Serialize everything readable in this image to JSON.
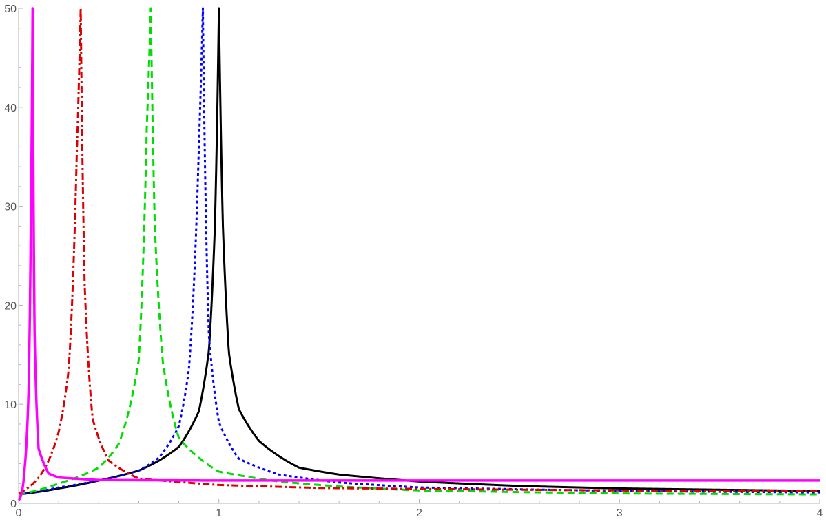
{
  "chart_data": {
    "type": "line",
    "title": "",
    "xlabel": "",
    "ylabel": "",
    "xlim": [
      0,
      4
    ],
    "ylim": [
      0,
      50
    ],
    "x_ticks": [
      0,
      1,
      2,
      3,
      4
    ],
    "y_ticks": [
      0,
      10,
      20,
      30,
      40,
      50
    ],
    "x_tick_labels": [
      "0",
      "1",
      "2",
      "3",
      "4"
    ],
    "y_tick_labels": [
      "0",
      "10",
      "20",
      "30",
      "40",
      "50"
    ],
    "grid": false,
    "legend": "none",
    "series": [
      {
        "color": "#000000",
        "dash": "solid",
        "asymptote_x": 1.0,
        "asymptote_value": 1.2,
        "x": [
          0,
          0.2,
          0.4,
          0.6,
          0.7,
          0.8,
          0.9,
          0.95,
          0.98,
          1.0,
          1.02,
          1.05,
          1.1,
          1.2,
          1.4,
          1.6,
          2.0,
          2.5,
          3.0,
          4.0
        ],
        "y": [
          0.9,
          1.5,
          2.3,
          3.3,
          4.3,
          5.7,
          9.3,
          15.4,
          28,
          50,
          28,
          15.2,
          9.5,
          6.3,
          3.6,
          2.9,
          2.2,
          1.75,
          1.5,
          1.25
        ]
      },
      {
        "color": "#0000ff",
        "dash": "dotted",
        "asymptote_x": 0.92,
        "asymptote_value": 1.1,
        "x": [
          0,
          0.2,
          0.4,
          0.6,
          0.7,
          0.8,
          0.85,
          0.9,
          0.92,
          0.95,
          1.0,
          1.1,
          1.3,
          1.6,
          2.0,
          3.0,
          4.0
        ],
        "y": [
          0.9,
          1.6,
          2.3,
          3.3,
          4.6,
          7.8,
          13.5,
          36,
          50,
          17,
          8.2,
          4.5,
          2.9,
          2.1,
          1.6,
          1.25,
          1.1
        ]
      },
      {
        "color": "#00dd00",
        "dash": "dashed",
        "asymptote_x": 0.66,
        "asymptote_value": 0.9,
        "x": [
          0,
          0.2,
          0.4,
          0.5,
          0.6,
          0.64,
          0.66,
          0.68,
          0.72,
          0.8,
          1.0,
          1.3,
          1.6,
          2.0,
          3.0,
          4.0
        ],
        "y": [
          0.9,
          2.0,
          3.6,
          6.0,
          14.5,
          38,
          50,
          28,
          14.3,
          6.6,
          3.2,
          2.2,
          1.7,
          1.3,
          1.0,
          0.9
        ]
      },
      {
        "color": "#dd0000",
        "dash": "dash-dot",
        "asymptote_x": 0.31,
        "asymptote_value": 1.25,
        "x": [
          0,
          0.1,
          0.2,
          0.25,
          0.29,
          0.31,
          0.33,
          0.37,
          0.45,
          0.6,
          1.0,
          1.5,
          2.0,
          3.0,
          4.0
        ],
        "y": [
          1.0,
          2.6,
          7.2,
          13.5,
          35,
          50,
          22,
          8.5,
          4.3,
          2.5,
          1.85,
          1.55,
          1.45,
          1.3,
          1.25
        ]
      },
      {
        "color": "#ff00ff",
        "dash": "solid",
        "asymptote_x": 0.07,
        "asymptote_value": 2.3,
        "x": [
          0,
          0.03,
          0.05,
          0.06,
          0.07,
          0.08,
          0.1,
          0.15,
          0.2,
          0.4,
          1.0,
          2.0,
          3.0,
          4.0
        ],
        "y": [
          0.3,
          3.5,
          11.5,
          26,
          50,
          17,
          5.5,
          3.0,
          2.6,
          2.35,
          2.3,
          2.3,
          2.3,
          2.3
        ]
      }
    ]
  }
}
